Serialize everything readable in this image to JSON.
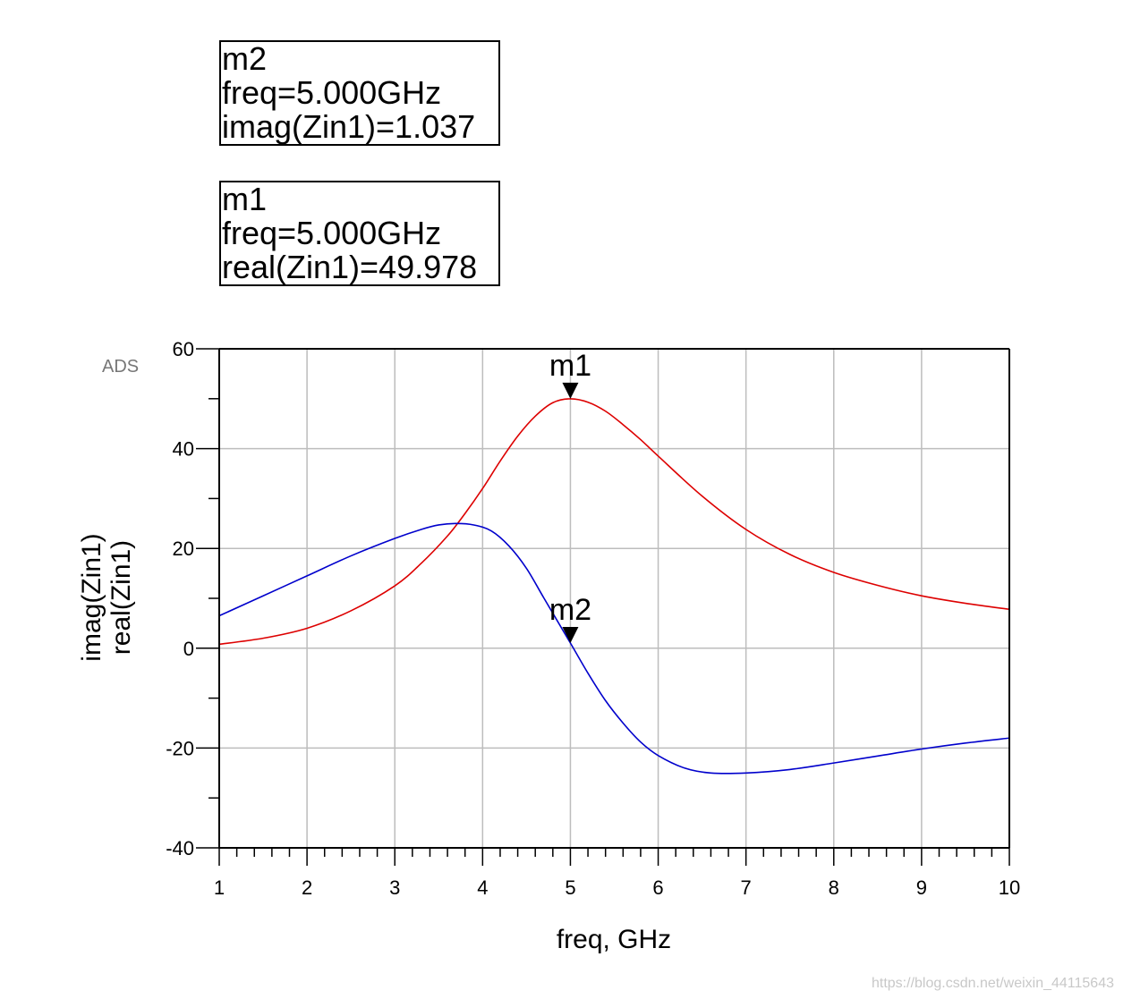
{
  "marker_boxes": {
    "m2": {
      "name": "m2",
      "freq": "freq=5.000GHz",
      "value": "imag(Zin1)=1.037"
    },
    "m1": {
      "name": "m1",
      "freq": "freq=5.000GHz",
      "value": "real(Zin1)=49.978"
    }
  },
  "logo": "ADS",
  "watermark": "https://blog.csdn.net/weixin_44115643",
  "chart_data": {
    "type": "line",
    "xlabel": "freq, GHz",
    "ylabel_series": [
      "imag(Zin1)",
      "real(Zin1)"
    ],
    "xlim": [
      1,
      10
    ],
    "ylim": [
      -40,
      60
    ],
    "xticks": [
      1,
      2,
      3,
      4,
      5,
      6,
      7,
      8,
      9,
      10
    ],
    "yticks": [
      -40,
      -20,
      0,
      20,
      40,
      60
    ],
    "grid": true,
    "colors": {
      "imag": "#0000cc",
      "real": "#dd0000"
    },
    "series": [
      {
        "name": "real(Zin1)",
        "color": "#dd0000",
        "x": [
          1.0,
          1.5,
          2.0,
          2.5,
          3.0,
          3.3,
          3.6,
          3.8,
          4.0,
          4.2,
          4.4,
          4.6,
          4.8,
          5.0,
          5.2,
          5.4,
          5.6,
          5.8,
          6.0,
          6.5,
          7.0,
          7.5,
          8.0,
          8.5,
          9.0,
          9.5,
          10.0
        ],
        "values": [
          0.8,
          2.0,
          4.0,
          7.5,
          12.5,
          17.0,
          22.5,
          27.0,
          32.0,
          37.5,
          42.5,
          46.5,
          49.2,
          49.978,
          49.3,
          47.5,
          44.8,
          41.8,
          38.5,
          30.5,
          23.8,
          18.8,
          15.2,
          12.6,
          10.5,
          9.0,
          7.8
        ]
      },
      {
        "name": "imag(Zin1)",
        "color": "#0000cc",
        "x": [
          1.0,
          1.5,
          2.0,
          2.5,
          3.0,
          3.3,
          3.5,
          3.7,
          3.9,
          4.1,
          4.3,
          4.5,
          4.7,
          5.0,
          5.2,
          5.4,
          5.6,
          5.8,
          6.0,
          6.3,
          6.6,
          7.0,
          7.5,
          8.0,
          8.5,
          9.0,
          9.5,
          10.0
        ],
        "values": [
          6.5,
          10.5,
          14.5,
          18.5,
          22.0,
          23.8,
          24.7,
          25.0,
          24.7,
          23.5,
          20.5,
          16.0,
          10.0,
          1.037,
          -5.0,
          -10.5,
          -15.0,
          -18.8,
          -21.5,
          -24.0,
          -25.0,
          -25.0,
          -24.3,
          -23.0,
          -21.6,
          -20.2,
          -19.0,
          -18.0
        ]
      }
    ],
    "markers": [
      {
        "name": "m1",
        "series": "real(Zin1)",
        "x": 5.0,
        "y": 49.978
      },
      {
        "name": "m2",
        "series": "imag(Zin1)",
        "x": 5.0,
        "y": 1.037
      }
    ]
  }
}
